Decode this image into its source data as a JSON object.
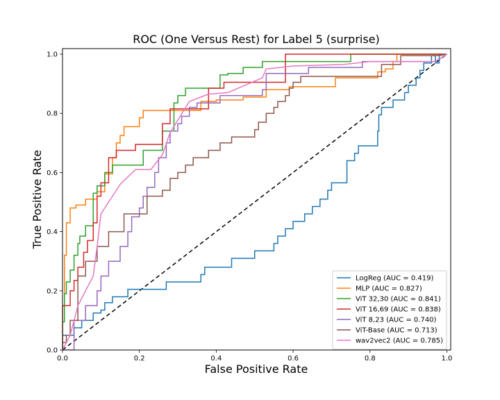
{
  "chart_data": {
    "type": "line",
    "title": "ROC (One Versus Rest) for Label 5 (surprise)",
    "xlabel": "False Positive Rate",
    "ylabel": "True Positive Rate",
    "xlim": [
      0,
      1.01
    ],
    "ylim": [
      0,
      1.0
    ],
    "xticks": [
      "0.0",
      "0.2",
      "0.4",
      "0.6",
      "0.8",
      "1.0"
    ],
    "yticks": [
      "0.0",
      "0.2",
      "0.4",
      "0.6",
      "0.8",
      "1.0"
    ],
    "grid": false,
    "legend_position": "lower-right",
    "diagonal": {
      "x": [
        0,
        1
      ],
      "y": [
        0,
        1
      ],
      "style": "dashed",
      "color": "#000000"
    },
    "series": [
      {
        "name": "LogReg (AUC = 0.419)",
        "color": "#1f77b4",
        "x": [
          0.0,
          0.0,
          0.03,
          0.03,
          0.05,
          0.05,
          0.08,
          0.08,
          0.1,
          0.1,
          0.11,
          0.11,
          0.13,
          0.13,
          0.17,
          0.17,
          0.27,
          0.27,
          0.36,
          0.36,
          0.37,
          0.37,
          0.44,
          0.44,
          0.5,
          0.5,
          0.55,
          0.55,
          0.56,
          0.56,
          0.58,
          0.58,
          0.6,
          0.6,
          0.63,
          0.63,
          0.65,
          0.65,
          0.67,
          0.67,
          0.69,
          0.69,
          0.7,
          0.7,
          0.74,
          0.74,
          0.76,
          0.76,
          0.77,
          0.77,
          0.78,
          0.78,
          0.82,
          0.82,
          0.823,
          0.823,
          0.83,
          0.83,
          0.86,
          0.86,
          0.89,
          0.89,
          0.9,
          0.9,
          0.92,
          0.92,
          0.93,
          0.93,
          0.94,
          0.94,
          0.96,
          0.96,
          0.97,
          0.97,
          0.98,
          0.98,
          1.0
        ],
        "y": [
          0.0,
          0.05,
          0.05,
          0.075,
          0.075,
          0.1,
          0.1,
          0.125,
          0.125,
          0.135,
          0.135,
          0.16,
          0.16,
          0.18,
          0.18,
          0.205,
          0.205,
          0.23,
          0.23,
          0.255,
          0.255,
          0.28,
          0.28,
          0.31,
          0.31,
          0.335,
          0.335,
          0.36,
          0.36,
          0.385,
          0.385,
          0.41,
          0.41,
          0.435,
          0.435,
          0.46,
          0.46,
          0.485,
          0.485,
          0.51,
          0.51,
          0.54,
          0.54,
          0.565,
          0.565,
          0.64,
          0.64,
          0.665,
          0.665,
          0.69,
          0.69,
          0.69,
          0.69,
          0.74,
          0.74,
          0.795,
          0.795,
          0.82,
          0.82,
          0.845,
          0.845,
          0.87,
          0.87,
          0.895,
          0.895,
          0.92,
          0.92,
          0.945,
          0.945,
          0.97,
          0.97,
          0.995,
          0.995,
          0.97,
          0.97,
          0.995,
          1.0
        ]
      },
      {
        "name": "MLP (AUC = 0.827)",
        "color": "#ff7f0e",
        "x": [
          0.0,
          0.0,
          0.005,
          0.005,
          0.01,
          0.01,
          0.02,
          0.02,
          0.035,
          0.035,
          0.06,
          0.06,
          0.09,
          0.09,
          0.11,
          0.11,
          0.13,
          0.13,
          0.14,
          0.14,
          0.15,
          0.15,
          0.16,
          0.16,
          0.2,
          0.2,
          0.21,
          0.21,
          0.36,
          0.36,
          0.4,
          0.4,
          0.47,
          0.47,
          0.53,
          0.53,
          0.59,
          0.59,
          0.71,
          0.71,
          0.82,
          0.82,
          0.84,
          0.84,
          0.86,
          0.86,
          0.87,
          0.87,
          0.96,
          0.96,
          1.0
        ],
        "y": [
          0.0,
          0.15,
          0.15,
          0.32,
          0.32,
          0.43,
          0.43,
          0.48,
          0.48,
          0.49,
          0.49,
          0.51,
          0.51,
          0.535,
          0.535,
          0.595,
          0.595,
          0.65,
          0.65,
          0.7,
          0.7,
          0.725,
          0.725,
          0.755,
          0.755,
          0.785,
          0.785,
          0.81,
          0.81,
          0.84,
          0.84,
          0.845,
          0.845,
          0.855,
          0.855,
          0.88,
          0.88,
          0.89,
          0.89,
          0.92,
          0.92,
          0.94,
          0.94,
          0.95,
          0.95,
          0.975,
          0.975,
          1.0,
          1.0,
          1.0,
          1.0
        ]
      },
      {
        "name": "ViT 32,30 (AUC = 0.841)",
        "color": "#2ca02c",
        "x": [
          0.0,
          0.0,
          0.005,
          0.005,
          0.01,
          0.01,
          0.02,
          0.02,
          0.03,
          0.03,
          0.04,
          0.04,
          0.045,
          0.045,
          0.06,
          0.06,
          0.08,
          0.08,
          0.09,
          0.09,
          0.11,
          0.11,
          0.13,
          0.13,
          0.14,
          0.14,
          0.15,
          0.15,
          0.21,
          0.21,
          0.26,
          0.26,
          0.29,
          0.29,
          0.3,
          0.3,
          0.32,
          0.32,
          0.36,
          0.36,
          0.41,
          0.41,
          0.43,
          0.43,
          0.47,
          0.47,
          0.52,
          0.52,
          0.75,
          0.75,
          0.97,
          1.0
        ],
        "y": [
          0.0,
          0.095,
          0.095,
          0.19,
          0.19,
          0.23,
          0.23,
          0.27,
          0.27,
          0.32,
          0.32,
          0.36,
          0.36,
          0.385,
          0.385,
          0.42,
          0.42,
          0.53,
          0.53,
          0.555,
          0.555,
          0.6,
          0.6,
          0.625,
          0.625,
          0.625,
          0.625,
          0.625,
          0.625,
          0.675,
          0.675,
          0.74,
          0.74,
          0.835,
          0.835,
          0.86,
          0.86,
          0.885,
          0.885,
          0.885,
          0.885,
          0.93,
          0.93,
          0.935,
          0.935,
          0.955,
          0.955,
          0.975,
          0.975,
          1.0,
          1.0,
          1.0
        ]
      },
      {
        "name": "ViT 16,69 (AUC = 0.838)",
        "color": "#d62728",
        "x": [
          0.0,
          0.0,
          0.02,
          0.02,
          0.03,
          0.03,
          0.04,
          0.04,
          0.055,
          0.055,
          0.065,
          0.065,
          0.08,
          0.08,
          0.09,
          0.09,
          0.1,
          0.1,
          0.12,
          0.12,
          0.13,
          0.13,
          0.14,
          0.14,
          0.16,
          0.16,
          0.19,
          0.19,
          0.26,
          0.26,
          0.28,
          0.28,
          0.38,
          0.38,
          0.39,
          0.39,
          0.42,
          0.42,
          0.46,
          0.46,
          0.58,
          0.58,
          0.97,
          1.0
        ],
        "y": [
          0.0,
          0.15,
          0.15,
          0.2,
          0.2,
          0.235,
          0.235,
          0.28,
          0.28,
          0.33,
          0.33,
          0.37,
          0.37,
          0.43,
          0.43,
          0.52,
          0.52,
          0.565,
          0.565,
          0.65,
          0.65,
          0.65,
          0.65,
          0.675,
          0.675,
          0.675,
          0.675,
          0.695,
          0.695,
          0.765,
          0.765,
          0.815,
          0.815,
          0.885,
          0.885,
          0.885,
          0.885,
          0.905,
          0.905,
          0.905,
          0.905,
          1.0,
          1.0,
          1.0
        ]
      },
      {
        "name": "ViT 8,23 (AUC = 0.740)",
        "color": "#9467bd",
        "x": [
          0.0,
          0.03,
          0.03,
          0.06,
          0.06,
          0.09,
          0.09,
          0.1,
          0.1,
          0.12,
          0.12,
          0.15,
          0.15,
          0.17,
          0.17,
          0.18,
          0.18,
          0.2,
          0.2,
          0.21,
          0.21,
          0.22,
          0.22,
          0.24,
          0.24,
          0.25,
          0.25,
          0.27,
          0.27,
          0.28,
          0.28,
          0.3,
          0.3,
          0.31,
          0.31,
          0.33,
          0.33,
          0.35,
          0.35,
          0.37,
          0.37,
          0.41,
          0.41,
          0.52,
          0.52,
          0.53,
          0.53,
          0.64,
          0.64,
          0.78,
          0.78,
          0.97,
          1.0
        ],
        "y": [
          0.0,
          0.0,
          0.1,
          0.1,
          0.15,
          0.15,
          0.2,
          0.2,
          0.25,
          0.25,
          0.3,
          0.3,
          0.35,
          0.35,
          0.4,
          0.4,
          0.45,
          0.45,
          0.48,
          0.48,
          0.52,
          0.52,
          0.55,
          0.55,
          0.6,
          0.6,
          0.65,
          0.65,
          0.7,
          0.7,
          0.74,
          0.74,
          0.765,
          0.765,
          0.79,
          0.79,
          0.82,
          0.82,
          0.835,
          0.835,
          0.835,
          0.835,
          0.86,
          0.86,
          0.88,
          0.88,
          0.935,
          0.935,
          0.955,
          0.955,
          0.975,
          0.975,
          1.0
        ]
      },
      {
        "name": "ViT-Base (AUC = 0.713)",
        "color": "#8c564b",
        "x": [
          0.0,
          0.0,
          0.01,
          0.01,
          0.02,
          0.02,
          0.04,
          0.04,
          0.06,
          0.06,
          0.09,
          0.09,
          0.12,
          0.12,
          0.16,
          0.16,
          0.19,
          0.19,
          0.22,
          0.22,
          0.26,
          0.26,
          0.28,
          0.28,
          0.3,
          0.3,
          0.32,
          0.32,
          0.34,
          0.34,
          0.38,
          0.38,
          0.41,
          0.41,
          0.44,
          0.44,
          0.5,
          0.5,
          0.51,
          0.51,
          0.53,
          0.53,
          0.55,
          0.55,
          0.56,
          0.56,
          0.58,
          0.58,
          0.59,
          0.59,
          0.6,
          0.6,
          0.62,
          0.62,
          0.83,
          0.83,
          0.88,
          0.88,
          0.97,
          1.0
        ],
        "y": [
          0.0,
          0.025,
          0.025,
          0.05,
          0.05,
          0.1,
          0.1,
          0.25,
          0.25,
          0.3,
          0.3,
          0.35,
          0.35,
          0.4,
          0.4,
          0.46,
          0.46,
          0.46,
          0.46,
          0.52,
          0.52,
          0.54,
          0.54,
          0.58,
          0.58,
          0.6,
          0.6,
          0.625,
          0.625,
          0.65,
          0.65,
          0.675,
          0.675,
          0.7,
          0.7,
          0.72,
          0.72,
          0.745,
          0.745,
          0.77,
          0.77,
          0.8,
          0.8,
          0.82,
          0.82,
          0.84,
          0.84,
          0.86,
          0.86,
          0.885,
          0.885,
          0.905,
          0.905,
          0.925,
          0.925,
          0.965,
          0.965,
          0.995,
          0.995,
          1.0
        ]
      },
      {
        "name": "wav2vec2 (AUC = 0.785)",
        "color": "#e377c2",
        "x": [
          0.0,
          0.0,
          0.02,
          0.02,
          0.04,
          0.04,
          0.06,
          0.06,
          0.08,
          0.08,
          0.09,
          0.09,
          0.1,
          0.1,
          0.12,
          0.12,
          0.15,
          0.15,
          0.17,
          0.17,
          0.19,
          0.19,
          0.23,
          0.23,
          0.26,
          0.26,
          0.28,
          0.28,
          0.33,
          0.33,
          0.38,
          0.38,
          0.43,
          0.43,
          0.52,
          0.52,
          0.53,
          0.53,
          0.6,
          0.6,
          0.73,
          0.73,
          0.8,
          0.8,
          0.97,
          1.0
        ],
        "y": [
          0.0,
          0.0,
          0.05,
          0.05,
          0.15,
          0.15,
          0.2,
          0.2,
          0.25,
          0.25,
          0.35,
          0.35,
          0.46,
          0.46,
          0.5,
          0.5,
          0.56,
          0.56,
          0.585,
          0.585,
          0.61,
          0.61,
          0.61,
          0.61,
          0.66,
          0.66,
          0.735,
          0.735,
          0.84,
          0.84,
          0.865,
          0.865,
          0.87,
          0.87,
          0.92,
          0.92,
          0.95,
          0.95,
          0.96,
          0.96,
          0.965,
          0.965,
          0.975,
          0.975,
          0.975,
          1.0
        ]
      }
    ]
  }
}
